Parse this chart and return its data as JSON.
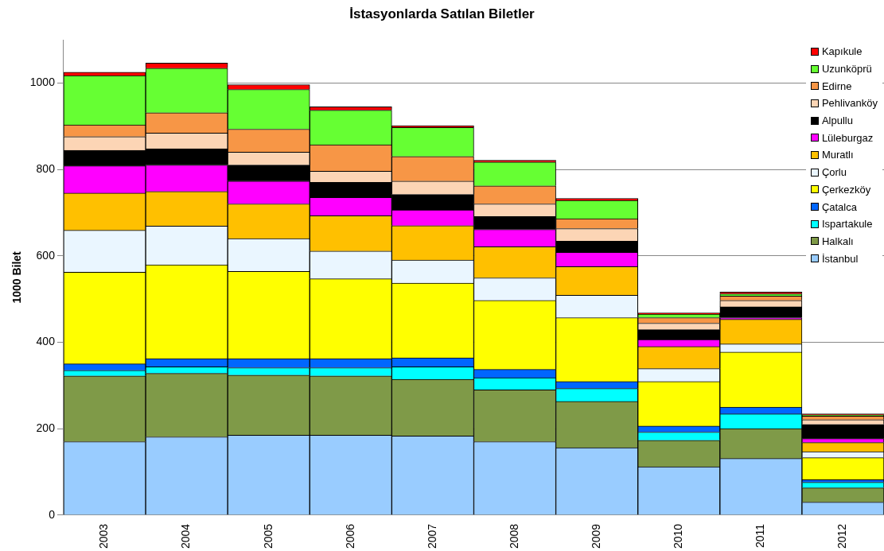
{
  "chart_data": {
    "type": "bar",
    "title": "İstasyonlarda Satılan Biletler",
    "ylabel": "1000 Bilet",
    "stacked": true,
    "grid": "y",
    "legend": "top right",
    "ylim": [
      0,
      1100
    ],
    "yticks": [
      0,
      200,
      400,
      600,
      800,
      1000
    ],
    "categories": [
      "2003",
      "2004",
      "2005",
      "2006",
      "2007",
      "2008",
      "2009",
      "2010",
      "2011",
      "2012"
    ],
    "series": [
      {
        "name": "İstanbul",
        "color": "#99ccff",
        "values": [
          170,
          181,
          185,
          185,
          183,
          170,
          156,
          112,
          131,
          30
        ]
      },
      {
        "name": "Halkalı",
        "color": "#7f9a48",
        "values": [
          152,
          147,
          139,
          137,
          131,
          120,
          107,
          61,
          69,
          33
        ]
      },
      {
        "name": "Ispartakule",
        "color": "#00ffff",
        "values": [
          13,
          15,
          17,
          19,
          29,
          28,
          30,
          19,
          34,
          13
        ]
      },
      {
        "name": "Çatalca",
        "color": "#0066ff",
        "values": [
          15,
          19,
          21,
          21,
          21,
          19,
          16,
          14,
          16,
          6
        ]
      },
      {
        "name": "Çerkezköy",
        "color": "#ffff00",
        "values": [
          212,
          217,
          202,
          185,
          173,
          160,
          148,
          103,
          127,
          51
        ]
      },
      {
        "name": "Çorlu",
        "color": "#eaf6ff",
        "values": [
          97,
          90,
          76,
          64,
          53,
          52,
          52,
          30,
          19,
          14
        ]
      },
      {
        "name": "Muratlı",
        "color": "#ffc000",
        "values": [
          86,
          80,
          80,
          82,
          80,
          72,
          66,
          51,
          57,
          21
        ]
      },
      {
        "name": "Lüleburgaz",
        "color": "#ff00ff",
        "values": [
          63,
          61,
          53,
          42,
          36,
          40,
          33,
          16,
          4,
          9
        ]
      },
      {
        "name": "Alpullu",
        "color": "#000000",
        "values": [
          36,
          38,
          37,
          35,
          36,
          30,
          26,
          23,
          25,
          33
        ]
      },
      {
        "name": "Pehlivanköy",
        "color": "#fcd5b5",
        "values": [
          32,
          36,
          30,
          26,
          31,
          29,
          29,
          15,
          15,
          11
        ]
      },
      {
        "name": "Edirne",
        "color": "#f79646",
        "values": [
          27,
          47,
          53,
          61,
          57,
          42,
          23,
          13,
          10,
          8
        ]
      },
      {
        "name": "Uzunköprü",
        "color": "#66ff33",
        "values": [
          114,
          103,
          92,
          80,
          67,
          55,
          42,
          8,
          5,
          3
        ]
      },
      {
        "name": "Kapıkule",
        "color": "#ff0000",
        "values": [
          8,
          12,
          11,
          8,
          4,
          4,
          5,
          3,
          4,
          2
        ]
      }
    ]
  }
}
